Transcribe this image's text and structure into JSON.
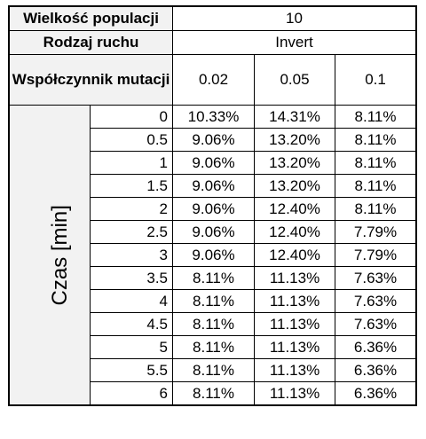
{
  "header": {
    "population_label": "Wielkość populacji",
    "population_value": "10",
    "move_label": "Rodzaj ruchu",
    "move_value": "Invert",
    "mutation_label": "Współczynnik mutacji",
    "mutation_values": [
      "0.02",
      "0.05",
      "0.1"
    ]
  },
  "time_axis_label": "Czas [min]",
  "rows": [
    {
      "time": "0",
      "values": [
        "10.33%",
        "14.31%",
        "8.11%"
      ]
    },
    {
      "time": "0.5",
      "values": [
        "9.06%",
        "13.20%",
        "8.11%"
      ]
    },
    {
      "time": "1",
      "values": [
        "9.06%",
        "13.20%",
        "8.11%"
      ]
    },
    {
      "time": "1.5",
      "values": [
        "9.06%",
        "13.20%",
        "8.11%"
      ]
    },
    {
      "time": "2",
      "values": [
        "9.06%",
        "12.40%",
        "8.11%"
      ]
    },
    {
      "time": "2.5",
      "values": [
        "9.06%",
        "12.40%",
        "7.79%"
      ]
    },
    {
      "time": "3",
      "values": [
        "9.06%",
        "12.40%",
        "7.79%"
      ]
    },
    {
      "time": "3.5",
      "values": [
        "8.11%",
        "11.13%",
        "7.63%"
      ]
    },
    {
      "time": "4",
      "values": [
        "8.11%",
        "11.13%",
        "7.63%"
      ]
    },
    {
      "time": "4.5",
      "values": [
        "8.11%",
        "11.13%",
        "7.63%"
      ]
    },
    {
      "time": "5",
      "values": [
        "8.11%",
        "11.13%",
        "6.36%"
      ]
    },
    {
      "time": "5.5",
      "values": [
        "8.11%",
        "11.13%",
        "6.36%"
      ]
    },
    {
      "time": "6",
      "values": [
        "8.11%",
        "11.13%",
        "6.36%"
      ]
    }
  ]
}
